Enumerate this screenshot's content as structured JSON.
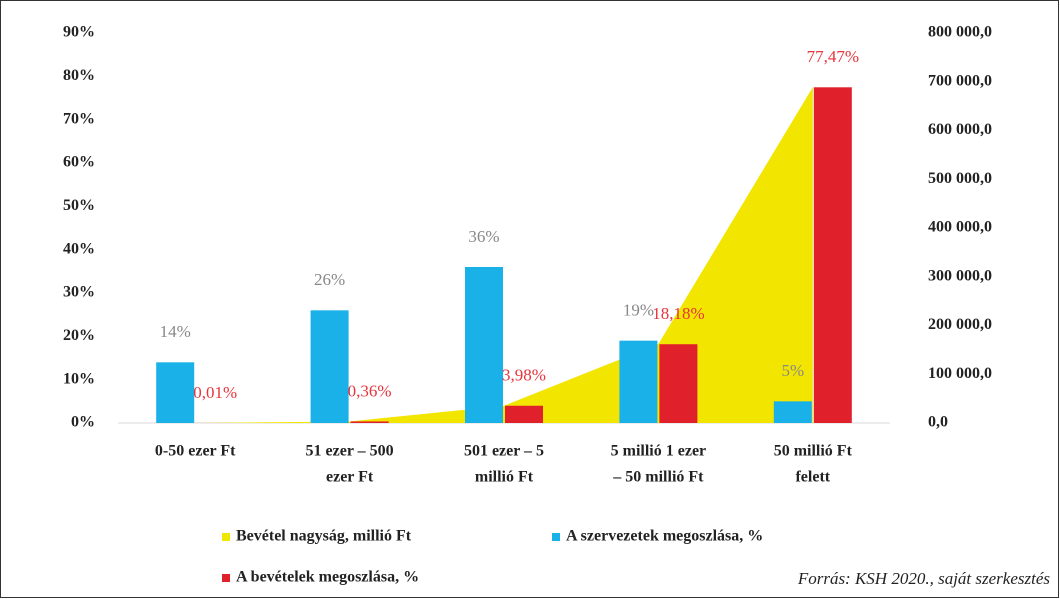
{
  "chart_data": {
    "type": "bar",
    "categories": [
      [
        "0-50 ezer Ft"
      ],
      [
        "51 ezer – 500",
        "ezer Ft"
      ],
      [
        "501 ezer – 5",
        "millió Ft"
      ],
      [
        "5 millió 1 ezer",
        "– 50 millió Ft"
      ],
      [
        "50 millió Ft",
        "felett"
      ]
    ],
    "series": [
      {
        "name": "Bevétel nagyság, millió Ft",
        "type": "area",
        "axis": "y2",
        "color": "#f2e600",
        "values": [
          89,
          3200,
          35400,
          162000,
          689000
        ]
      },
      {
        "name": "A szervezetek megoszlása, %",
        "type": "bar",
        "color": "#1ab0e8",
        "label_color": "#888888",
        "values": [
          14,
          26,
          36,
          19,
          5
        ],
        "value_labels": [
          "14%",
          "26%",
          "36%",
          "19%",
          "5%"
        ]
      },
      {
        "name": "A bevételek megoszlása, %",
        "type": "bar",
        "color": "#e0202a",
        "label_color": "#e8333a",
        "values": [
          0.01,
          0.36,
          3.98,
          18.18,
          77.47
        ],
        "value_labels": [
          "0,01%",
          "0,36%",
          "3,98%",
          "18,18%",
          "77,47%"
        ]
      }
    ],
    "ylim": [
      0,
      90
    ],
    "yticks": [
      {
        "value": 0,
        "label": "0%"
      },
      {
        "value": 10,
        "label": "10%"
      },
      {
        "value": 20,
        "label": "20%"
      },
      {
        "value": 30,
        "label": "30%"
      },
      {
        "value": 40,
        "label": "40%"
      },
      {
        "value": 50,
        "label": "50%"
      },
      {
        "value": 60,
        "label": "60%"
      },
      {
        "value": 70,
        "label": "70%"
      },
      {
        "value": 80,
        "label": "80%"
      },
      {
        "value": 90,
        "label": "90%"
      }
    ],
    "y2lim": [
      0,
      800000
    ],
    "y2ticks": [
      {
        "value": 0,
        "label": "0,0"
      },
      {
        "value": 100000,
        "label": "100 000,0"
      },
      {
        "value": 200000,
        "label": "200 000,0"
      },
      {
        "value": 300000,
        "label": "300 000,0"
      },
      {
        "value": 400000,
        "label": "400 000,0"
      },
      {
        "value": 500000,
        "label": "500 000,0"
      },
      {
        "value": 600000,
        "label": "600 000,0"
      },
      {
        "value": 700000,
        "label": "700 000,0"
      },
      {
        "value": 800000,
        "label": "800 000,0"
      }
    ],
    "source": "Forrás: KSH 2020., saját szerkesztés"
  }
}
